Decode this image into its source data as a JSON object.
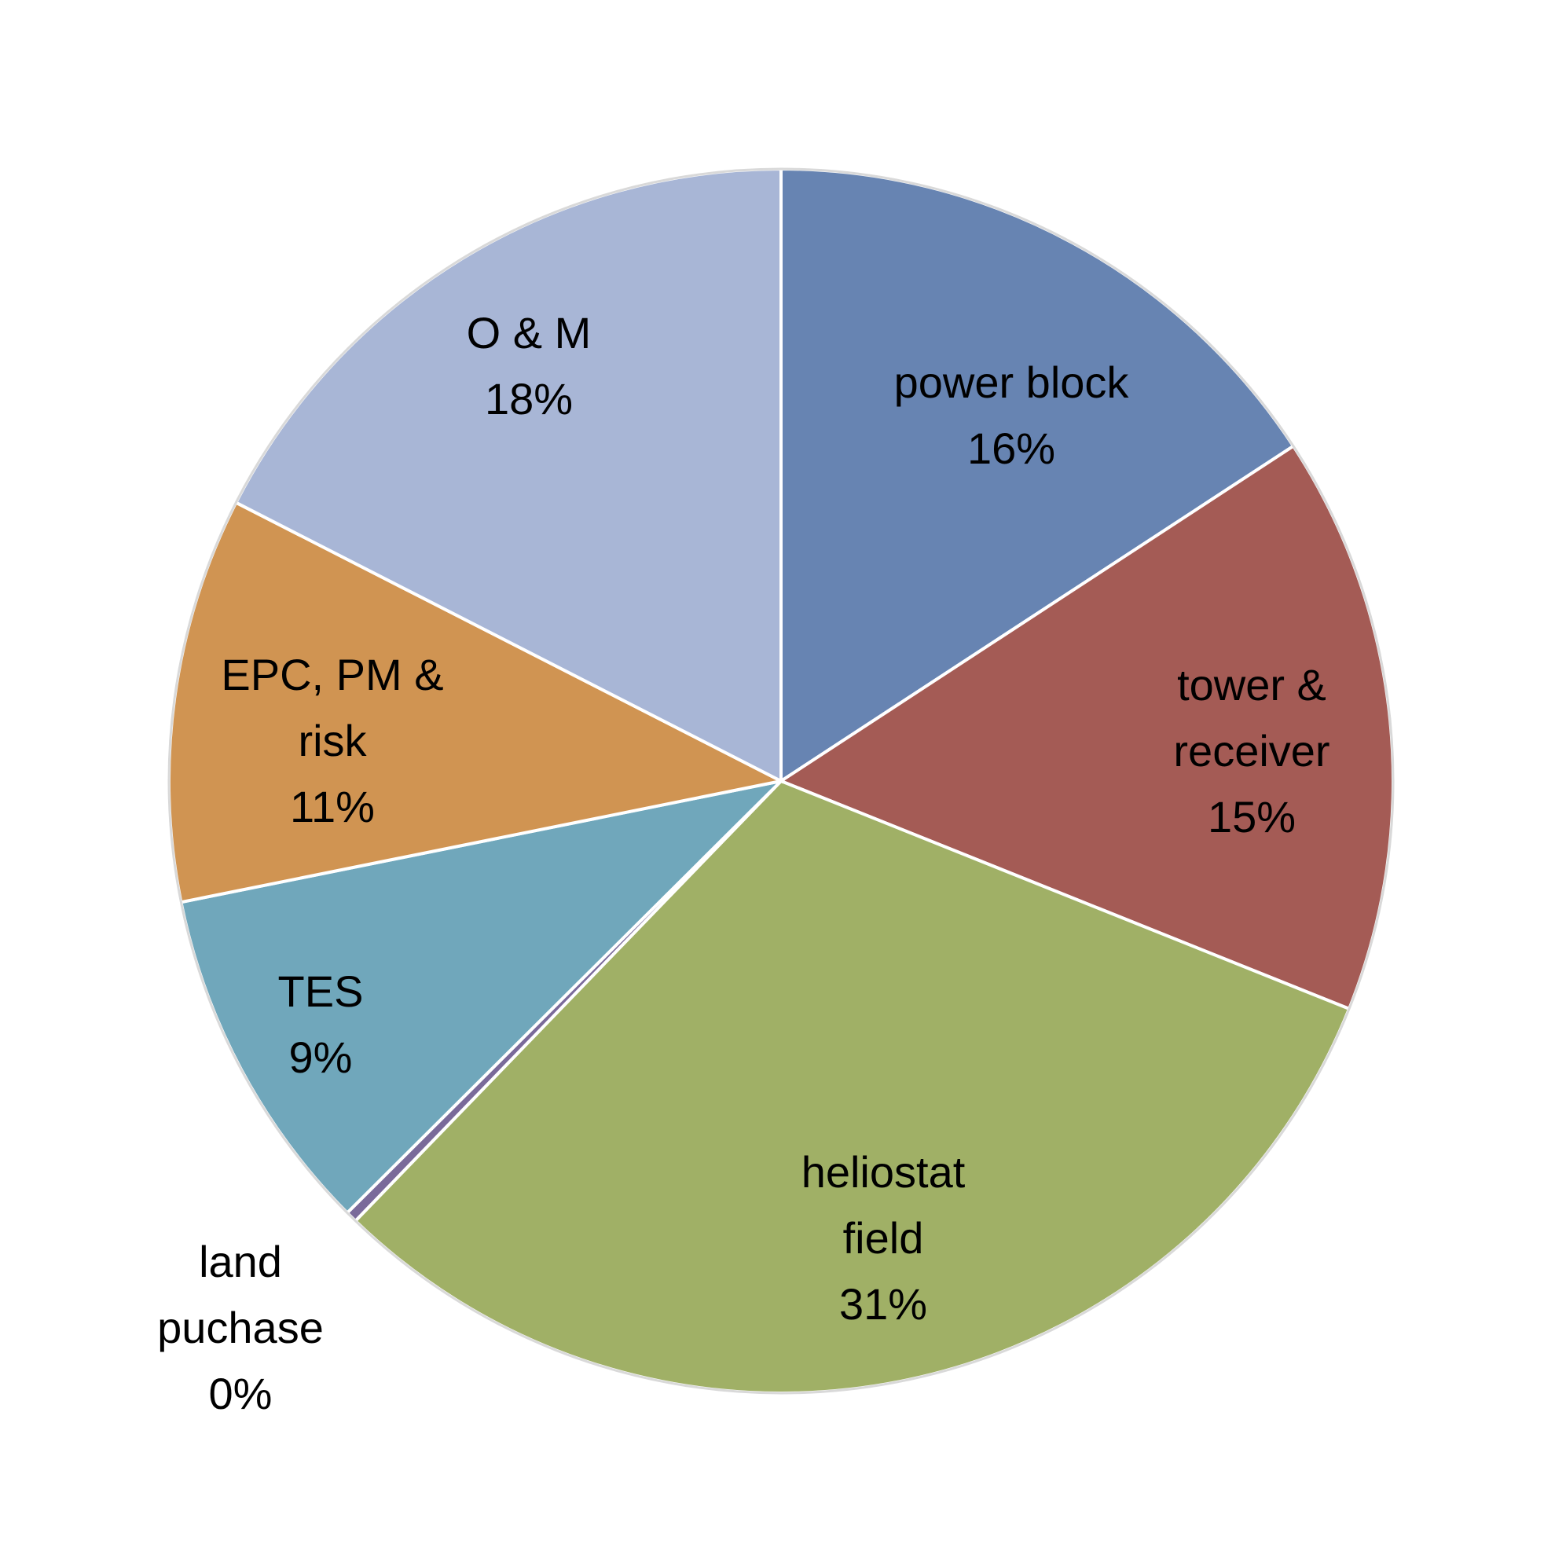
{
  "chart_data": {
    "type": "pie",
    "categories": [
      "power block",
      "tower & receiver",
      "heliostat field",
      "land puchase",
      "TES",
      "EPC, PM & risk",
      "O & M"
    ],
    "values": [
      15.8,
      15.3,
      31.2,
      0.3,
      9.3,
      10.7,
      17.5
    ],
    "value_labels": [
      "16%",
      "15%",
      "31%",
      "0%",
      "9%",
      "11%",
      "18%"
    ],
    "colors": [
      "#6784b2",
      "#a45b55",
      "#a0b066",
      "#7a6a9a",
      "#70a7bb",
      "#d09452",
      "#a8b6d6"
    ]
  }
}
